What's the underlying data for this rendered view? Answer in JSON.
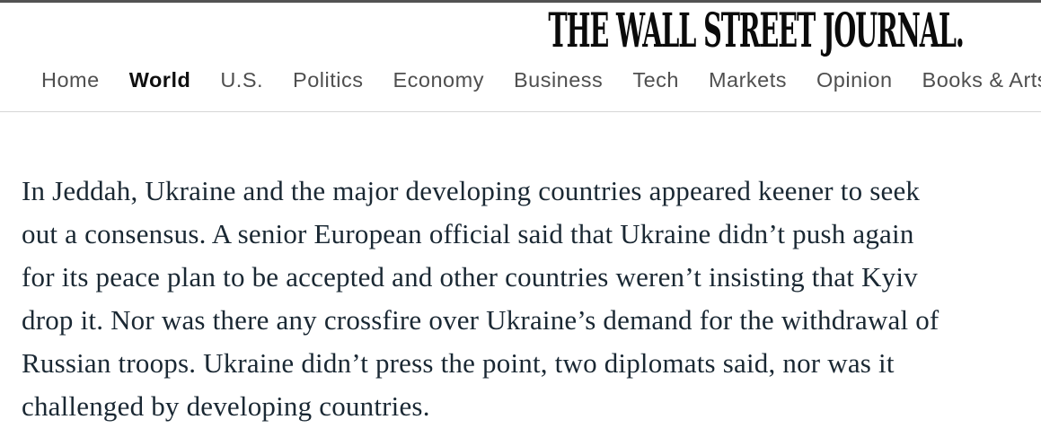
{
  "masthead": {
    "title": "THE WALL STREET JOURNAL."
  },
  "nav": {
    "active_item": "World",
    "items": [
      {
        "label": "Home"
      },
      {
        "label": "World"
      },
      {
        "label": "U.S."
      },
      {
        "label": "Politics"
      },
      {
        "label": "Economy"
      },
      {
        "label": "Business"
      },
      {
        "label": "Tech"
      },
      {
        "label": "Markets"
      },
      {
        "label": "Opinion"
      },
      {
        "label": "Books & Arts"
      }
    ]
  },
  "article": {
    "lines": [
      "In Jeddah, Ukraine and the major developing countries appeared keener to seek",
      "out a consensus. A senior European official said that Ukraine didn’t push again",
      "for its peace plan to be accepted and other countries weren’t insisting that Kyiv",
      "drop it. Nor was there any crossfire over Ukraine’s demand for the withdrawal of",
      "Russian troops. Ukraine didn’t press the point, two diplomats said, nor was it",
      "challenged by developing countries."
    ]
  },
  "colors": {
    "topbar": "#525252",
    "masthead_text": "#0b0b0b",
    "nav_text": "#4f4f4f",
    "nav_active_text": "#0f0f0f",
    "divider": "#d6d6d6",
    "body_text": "#1a2833",
    "background": "#ffffff"
  }
}
